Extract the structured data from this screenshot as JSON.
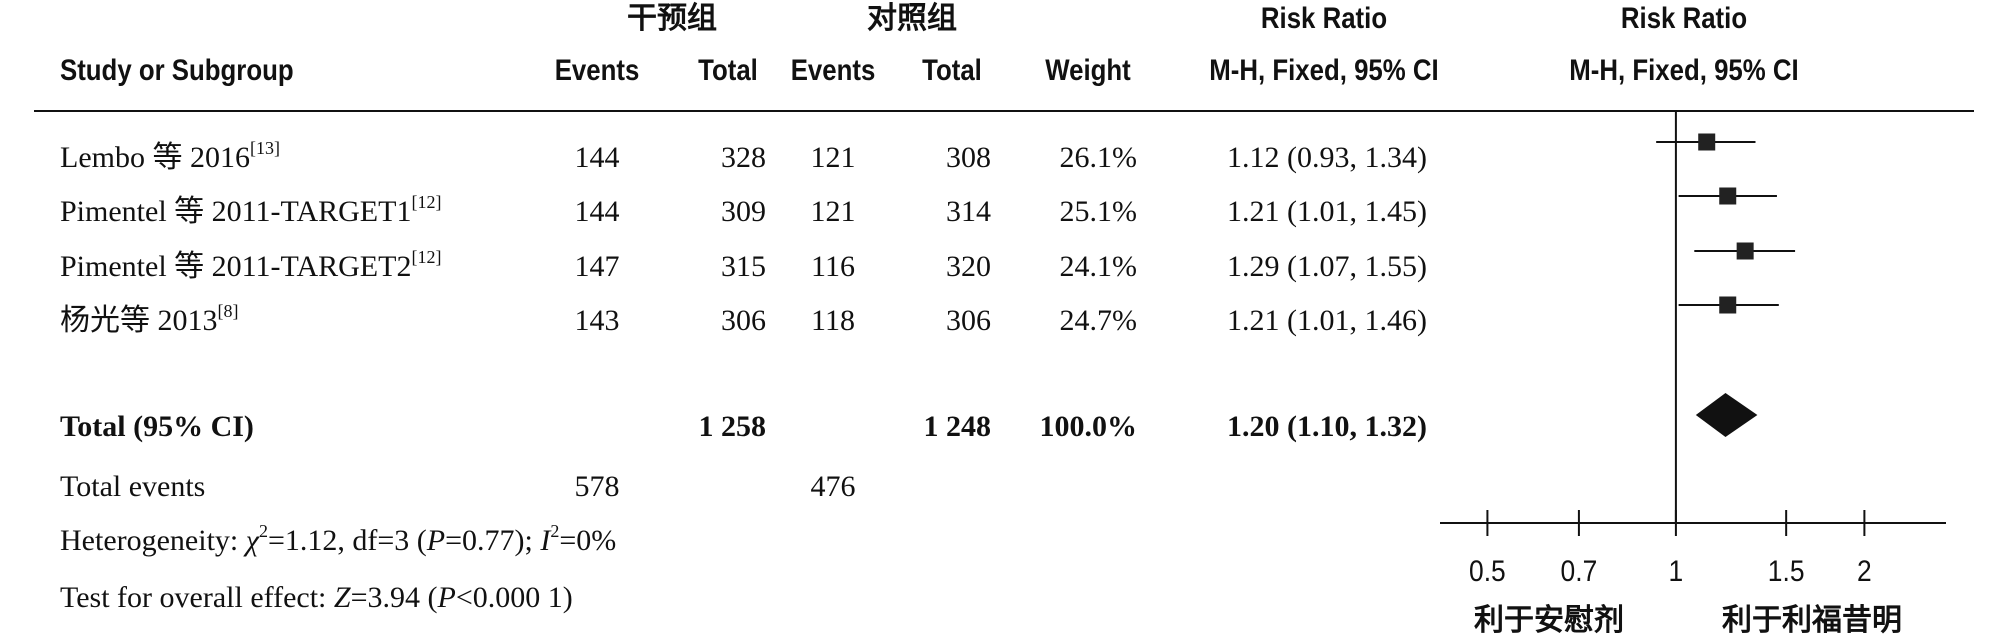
{
  "headers": {
    "intervention_group": "干预组",
    "control_group": "对照组",
    "study": "Study or Subgroup",
    "events": "Events",
    "total": "Total",
    "weight": "Weight",
    "risk_ratio": "Risk Ratio",
    "method_ci": "M-H, Fixed, 95% CI"
  },
  "chart_data": {
    "type": "forest",
    "x_scale": "log",
    "x_ticks": [
      "0.5",
      "0.7",
      "1",
      "1.5",
      "2"
    ],
    "x_tick_values": [
      0.5,
      0.7,
      1,
      1.5,
      2
    ],
    "xlim": [
      0.42,
      2.7
    ],
    "null_value": 1,
    "x_left_caption": "利于安慰剂",
    "x_right_caption": "利于利福昔明",
    "studies": [
      {
        "name": "Lembo 等 2016",
        "ref": "[13]",
        "events_i": "144",
        "total_i": "328",
        "events_c": "121",
        "total_c": "308",
        "weight": "26.1%",
        "ci_text": "1.12 (0.93, 1.34)",
        "rr": 1.12,
        "lo": 0.93,
        "hi": 1.34
      },
      {
        "name": "Pimentel 等 2011-TARGET1",
        "ref": "[12]",
        "events_i": "144",
        "total_i": "309",
        "events_c": "121",
        "total_c": "314",
        "weight": "25.1%",
        "ci_text": "1.21 (1.01, 1.45)",
        "rr": 1.21,
        "lo": 1.01,
        "hi": 1.45
      },
      {
        "name": "Pimentel 等 2011-TARGET2",
        "ref": "[12]",
        "events_i": "147",
        "total_i": "315",
        "events_c": "116",
        "total_c": "320",
        "weight": "24.1%",
        "ci_text": "1.29 (1.07, 1.55)",
        "rr": 1.29,
        "lo": 1.07,
        "hi": 1.55
      },
      {
        "name": "杨光等 2013",
        "ref": "[8]",
        "events_i": "143",
        "total_i": "306",
        "events_c": "118",
        "total_c": "306",
        "weight": "24.7%",
        "ci_text": "1.21 (1.01, 1.46)",
        "rr": 1.21,
        "lo": 1.01,
        "hi": 1.46
      }
    ],
    "total": {
      "label": "Total (95% CI)",
      "total_i": "1 258",
      "total_c": "1 248",
      "weight": "100.0%",
      "ci_text": "1.20 (1.10, 1.32)",
      "rr": 1.2,
      "lo": 1.1,
      "hi": 1.32
    },
    "total_events": {
      "label": "Total events",
      "events_i": "578",
      "events_c": "476"
    },
    "heterogeneity": {
      "prefix": "Heterogeneity: ",
      "chi": "χ",
      "chi_sup": "2",
      "chi_rest": "=1.12, df=3 (",
      "p": "P",
      "p_rest": "=0.77); ",
      "i": "I",
      "i_sup": "2",
      "i_rest": "=0%"
    },
    "overall_effect": {
      "prefix": "Test for overall effect: ",
      "z": "Z",
      "z_rest": "=3.94 (",
      "p": "P",
      "p_rest": "<0.000 1)"
    }
  }
}
